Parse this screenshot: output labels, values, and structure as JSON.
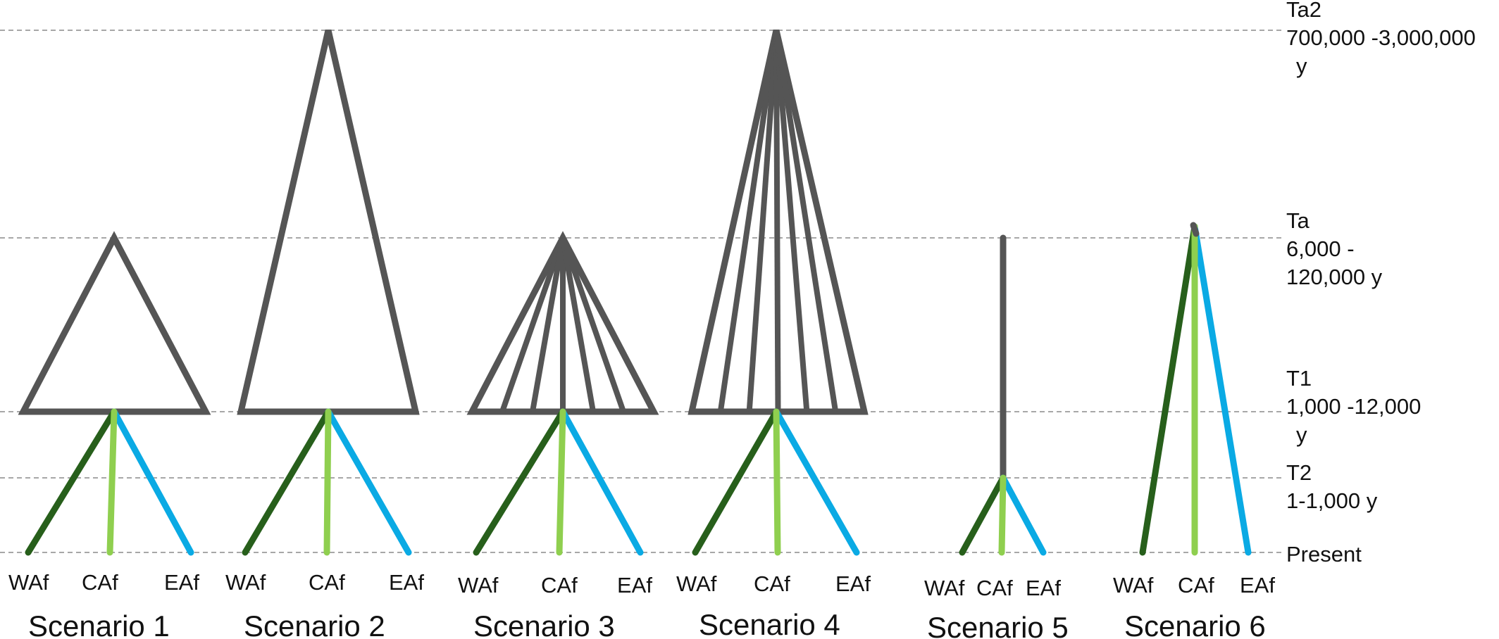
{
  "colors": {
    "ancestral": "#555555",
    "waf": "#275f1b",
    "caf": "#8fcf4f",
    "eaf": "#0aaae4",
    "guide": "#8a8a8a"
  },
  "time_levels": [
    {
      "key": "ta2",
      "lines": [
        "Ta2",
        "700,000 -3,000,000",
        "y"
      ]
    },
    {
      "key": "ta",
      "lines": [
        "Ta",
        "6,000 -",
        "120,000 y"
      ]
    },
    {
      "key": "t1",
      "lines": [
        "T1",
        "1,000 -12,000",
        "y"
      ]
    },
    {
      "key": "t2",
      "lines": [
        "T2",
        "1-1,000  y"
      ]
    },
    {
      "key": "present",
      "lines": [
        "Present"
      ]
    }
  ],
  "scenarios": [
    {
      "id": 1,
      "title": "Scenario 1",
      "ancestor": "triangle",
      "ancestor_top": "ta",
      "internal_lines": 0,
      "split_time": "t1",
      "leaves": [
        "WAf",
        "CAf",
        "EAf"
      ]
    },
    {
      "id": 2,
      "title": "Scenario 2",
      "ancestor": "triangle",
      "ancestor_top": "ta2",
      "internal_lines": 0,
      "split_time": "t1",
      "leaves": [
        "WAf",
        "CAf",
        "EAf"
      ]
    },
    {
      "id": 3,
      "title": "Scenario 3",
      "ancestor": "triangle",
      "ancestor_top": "ta",
      "internal_lines": 5,
      "split_time": "t1",
      "leaves": [
        "WAf",
        "CAf",
        "EAf"
      ]
    },
    {
      "id": 4,
      "title": "Scenario 4",
      "ancestor": "triangle",
      "ancestor_top": "ta2",
      "internal_lines": 5,
      "split_time": "t1",
      "leaves": [
        "WAf",
        "CAf",
        "EAf"
      ]
    },
    {
      "id": 5,
      "title": "Scenario 5",
      "ancestor": "line",
      "ancestor_top": "ta",
      "internal_lines": 0,
      "split_time": "t2",
      "leaves": [
        "WAf",
        "CAf",
        "EAf"
      ]
    },
    {
      "id": 6,
      "title": "Scenario 6",
      "ancestor": "none",
      "ancestor_top": "ta",
      "internal_lines": 0,
      "split_time": "ta",
      "leaves": [
        "WAf",
        "CAf",
        "EAf"
      ]
    }
  ]
}
